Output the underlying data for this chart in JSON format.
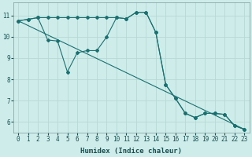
{
  "xlabel": "Humidex (Indice chaleur)",
  "background_color": "#ceecea",
  "grid_color": "#b8d8d5",
  "line_color": "#1a7070",
  "xlim": [
    -0.5,
    23.5
  ],
  "ylim": [
    5.5,
    11.6
  ],
  "xticks": [
    0,
    1,
    2,
    3,
    4,
    5,
    6,
    7,
    8,
    9,
    10,
    11,
    12,
    13,
    14,
    15,
    16,
    17,
    18,
    19,
    20,
    21,
    22,
    23
  ],
  "yticks": [
    6,
    7,
    8,
    9,
    10,
    11
  ],
  "line1_x": [
    0,
    1,
    2,
    3,
    4,
    5,
    6,
    7,
    8,
    9,
    10,
    11,
    12,
    13,
    14,
    15,
    16,
    17,
    18,
    19,
    20,
    21,
    22,
    23
  ],
  "line1_y": [
    10.75,
    10.82,
    10.9,
    10.9,
    10.9,
    10.9,
    10.9,
    10.9,
    10.9,
    10.9,
    10.9,
    10.85,
    11.15,
    11.15,
    10.2,
    7.75,
    7.1,
    6.4,
    6.2,
    6.4,
    6.4,
    6.35,
    5.82,
    5.65
  ],
  "line2_x": [
    0,
    1,
    2,
    3,
    4,
    5,
    6,
    7,
    8,
    9,
    10,
    11,
    12,
    13,
    14,
    15,
    16,
    17,
    18,
    19,
    20,
    21,
    22,
    23
  ],
  "line2_y": [
    10.75,
    10.82,
    10.9,
    9.85,
    9.8,
    8.35,
    9.25,
    9.35,
    9.35,
    10.0,
    10.9,
    10.85,
    11.15,
    11.15,
    10.2,
    7.75,
    7.1,
    6.4,
    6.2,
    6.4,
    6.4,
    6.35,
    5.82,
    5.65
  ],
  "line3_x": [
    0,
    23
  ],
  "line3_y": [
    10.75,
    5.65
  ]
}
